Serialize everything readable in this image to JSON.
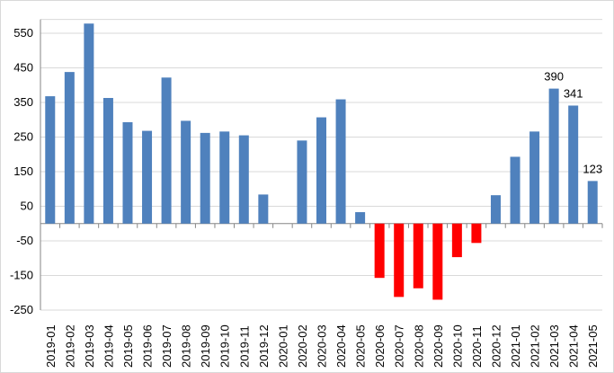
{
  "chart_data": {
    "type": "bar",
    "title": "",
    "xlabel": "",
    "ylabel": "",
    "ylim": [
      -250,
      590
    ],
    "yticks": [
      -250,
      -150,
      -50,
      50,
      150,
      250,
      350,
      450,
      550
    ],
    "ytick_labels": [
      "-250",
      "-150",
      "-50",
      "50",
      "150",
      "250",
      "350",
      "450",
      "550"
    ],
    "grid": true,
    "legend": "none",
    "positive_color": "#4F81BD",
    "negative_color": "#FF0000",
    "categories": [
      "2019-01",
      "2019-02",
      "2019-03",
      "2019-04",
      "2019-05",
      "2019-06",
      "2019-07",
      "2019-08",
      "2019-09",
      "2019-10",
      "2019-11",
      "2019-12",
      "2020-01",
      "2020-02",
      "2020-03",
      "2020-04",
      "2020-05",
      "2020-06",
      "2020-07",
      "2020-08",
      "2020-09",
      "2020-10",
      "2020-11",
      "2020-12",
      "2021-01",
      "2021-02",
      "2021-03",
      "2021-04",
      "2021-05"
    ],
    "values": [
      368,
      438,
      578,
      363,
      293,
      268,
      422,
      297,
      262,
      266,
      255,
      84,
      0,
      240,
      307,
      359,
      33,
      -157,
      -212,
      -187,
      -220,
      -97,
      -56,
      82,
      193,
      266,
      390,
      341,
      123
    ],
    "data_labels": [
      {
        "index": 26,
        "text": "390"
      },
      {
        "index": 27,
        "text": "341"
      },
      {
        "index": 28,
        "text": "123"
      }
    ]
  }
}
